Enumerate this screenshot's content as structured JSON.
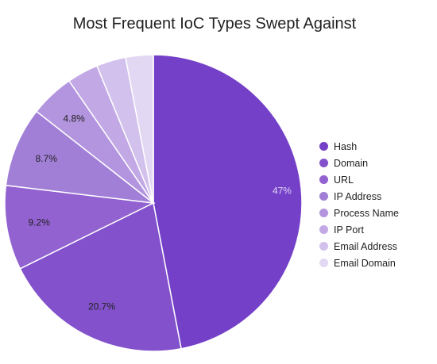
{
  "chart_data": {
    "type": "pie",
    "title": "Most Frequent IoC Types Swept Against",
    "series": [
      {
        "label": "Hash",
        "value": 47,
        "data_label": "47%",
        "color": "#7440c8"
      },
      {
        "label": "Domain",
        "value": 20.7,
        "data_label": "20.7%",
        "color": "#8251cb"
      },
      {
        "label": "URL",
        "value": 9.2,
        "data_label": "9.2%",
        "color": "#9362d1"
      },
      {
        "label": "IP Address",
        "value": 8.7,
        "data_label": "8.7%",
        "color": "#a17fd7"
      },
      {
        "label": "Process Name",
        "value": 4.8,
        "data_label": "4.8%",
        "color": "#b394de"
      },
      {
        "label": "IP Port",
        "value": 3.4,
        "data_label": "",
        "color": "#c2a9e6"
      },
      {
        "label": "Email Address",
        "value": 3.2,
        "data_label": "",
        "color": "#d2c1ec"
      },
      {
        "label": "Email Domain",
        "value": 3.0,
        "data_label": "",
        "color": "#e3d8f4"
      }
    ],
    "legend_position": "right"
  }
}
